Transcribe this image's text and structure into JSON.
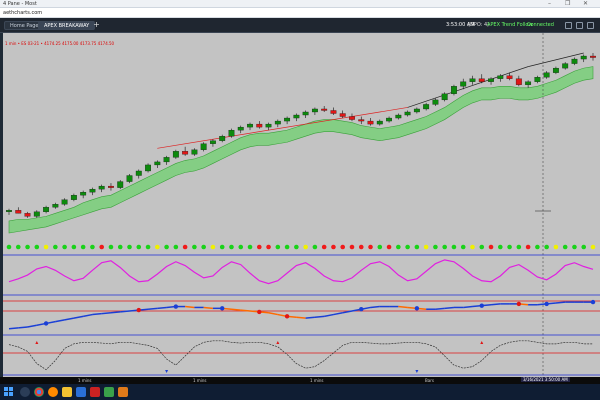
{
  "window": {
    "title": "4 Pane - Most",
    "controls": [
      "–",
      "❐",
      "✕"
    ]
  },
  "address": {
    "url": "aethcharts.com"
  },
  "tabs": [
    {
      "label": "Home Page",
      "active": false
    },
    {
      "label": "APEX BREAKAWAY",
      "active": true
    }
  ],
  "new_tab_label": "+",
  "status": {
    "time": "3:53:00 AM",
    "code": "(DPO: 4)",
    "feed": "APEX Trend Follow",
    "connection": "Connected"
  },
  "chart_strip_text": "1 min  •  ES 03-21  •  4174.25  4175.00  4173.75  4174.50",
  "time_axis": {
    "labels": [
      "1 mins",
      "1 mins",
      "1 mins",
      "Bars"
    ],
    "cursor_label": "3/16/2021 3:50:00 AM"
  },
  "icons": {
    "taskbar": [
      "windows-start-icon",
      "search-icon",
      "chrome-icon",
      "firefox-icon",
      "folder-icon",
      "mail-icon",
      "app-icon",
      "app-icon",
      "app-icon"
    ]
  },
  "colors": {
    "bull": "#0d8a0d",
    "bear": "#e01616",
    "band": "#6fd26f",
    "momentum": "#e020e0",
    "osc_up": "#1a3fd6",
    "osc_down": "#ff6a00",
    "panel_bg": "#c3c3c3"
  },
  "candles": [
    [
      4172,
      4174,
      4170,
      4173
    ],
    [
      4173,
      4175,
      4171,
      4171
    ],
    [
      4171,
      4172,
      4168,
      4169
    ],
    [
      4169,
      4173,
      4168,
      4172
    ],
    [
      4172,
      4176,
      4171,
      4175
    ],
    [
      4175,
      4178,
      4174,
      4177
    ],
    [
      4177,
      4181,
      4176,
      4180
    ],
    [
      4180,
      4184,
      4179,
      4183
    ],
    [
      4183,
      4186,
      4181,
      4185
    ],
    [
      4185,
      4188,
      4183,
      4187
    ],
    [
      4187,
      4190,
      4185,
      4189
    ],
    [
      4189,
      4191,
      4186,
      4188
    ],
    [
      4188,
      4193,
      4187,
      4192
    ],
    [
      4192,
      4197,
      4191,
      4196
    ],
    [
      4196,
      4200,
      4194,
      4199
    ],
    [
      4199,
      4204,
      4198,
      4203
    ],
    [
      4203,
      4206,
      4201,
      4205
    ],
    [
      4205,
      4209,
      4203,
      4208
    ],
    [
      4208,
      4213,
      4207,
      4212
    ],
    [
      4212,
      4215,
      4209,
      4210
    ],
    [
      4210,
      4214,
      4209,
      4213
    ],
    [
      4213,
      4218,
      4212,
      4217
    ],
    [
      4217,
      4220,
      4215,
      4219
    ],
    [
      4219,
      4223,
      4218,
      4222
    ],
    [
      4222,
      4227,
      4221,
      4226
    ],
    [
      4226,
      4229,
      4224,
      4228
    ],
    [
      4228,
      4231,
      4226,
      4230
    ],
    [
      4230,
      4232,
      4227,
      4228
    ],
    [
      4228,
      4231,
      4226,
      4230
    ],
    [
      4230,
      4233,
      4228,
      4232
    ],
    [
      4232,
      4235,
      4230,
      4234
    ],
    [
      4234,
      4237,
      4232,
      4236
    ],
    [
      4236,
      4239,
      4234,
      4238
    ],
    [
      4238,
      4241,
      4236,
      4240
    ],
    [
      4240,
      4242,
      4238,
      4239
    ],
    [
      4239,
      4241,
      4236,
      4237
    ],
    [
      4237,
      4239,
      4234,
      4235
    ],
    [
      4235,
      4237,
      4232,
      4233
    ],
    [
      4233,
      4235,
      4230,
      4232
    ],
    [
      4232,
      4234,
      4229,
      4230
    ],
    [
      4230,
      4233,
      4229,
      4232
    ],
    [
      4232,
      4235,
      4231,
      4234
    ],
    [
      4234,
      4237,
      4233,
      4236
    ],
    [
      4236,
      4239,
      4235,
      4238
    ],
    [
      4238,
      4241,
      4237,
      4240
    ],
    [
      4240,
      4244,
      4239,
      4243
    ],
    [
      4243,
      4247,
      4242,
      4246
    ],
    [
      4246,
      4251,
      4245,
      4250
    ],
    [
      4250,
      4256,
      4249,
      4255
    ],
    [
      4255,
      4260,
      4253,
      4258
    ],
    [
      4258,
      4262,
      4256,
      4260
    ],
    [
      4260,
      4263,
      4257,
      4258
    ],
    [
      4258,
      4261,
      4256,
      4260
    ],
    [
      4260,
      4263,
      4258,
      4262
    ],
    [
      4262,
      4264,
      4259,
      4260
    ],
    [
      4260,
      4262,
      4255,
      4256
    ],
    [
      4256,
      4259,
      4254,
      4258
    ],
    [
      4258,
      4262,
      4257,
      4261
    ],
    [
      4261,
      4265,
      4260,
      4264
    ],
    [
      4264,
      4268,
      4263,
      4267
    ],
    [
      4267,
      4271,
      4266,
      4270
    ],
    [
      4270,
      4274,
      4269,
      4273
    ],
    [
      4273,
      4276,
      4271,
      4275
    ],
    [
      4275,
      4277,
      4272,
      4274
    ]
  ],
  "band_upper": [
    4166,
    4167,
    4167,
    4168,
    4169,
    4171,
    4173,
    4175,
    4178,
    4180,
    4182,
    4183,
    4186,
    4189,
    4192,
    4195,
    4198,
    4201,
    4204,
    4206,
    4207,
    4209,
    4212,
    4215,
    4218,
    4221,
    4223,
    4224,
    4224,
    4225,
    4226,
    4228,
    4230,
    4232,
    4233,
    4233,
    4232,
    4231,
    4229,
    4228,
    4227,
    4228,
    4229,
    4231,
    4233,
    4235,
    4238,
    4241,
    4245,
    4249,
    4252,
    4254,
    4254,
    4255,
    4255,
    4254,
    4254,
    4255,
    4257,
    4259,
    4262,
    4265,
    4267,
    4268
  ],
  "band_lower": [
    4158,
    4159,
    4160,
    4161,
    4162,
    4164,
    4166,
    4168,
    4170,
    4172,
    4174,
    4175,
    4178,
    4181,
    4184,
    4187,
    4190,
    4193,
    4196,
    4198,
    4199,
    4201,
    4204,
    4207,
    4210,
    4213,
    4215,
    4216,
    4216,
    4217,
    4218,
    4220,
    4222,
    4224,
    4225,
    4225,
    4224,
    4223,
    4221,
    4220,
    4219,
    4220,
    4221,
    4223,
    4225,
    4227,
    4230,
    4233,
    4237,
    4241,
    4244,
    4246,
    4246,
    4247,
    4247,
    4246,
    4246,
    4247,
    4249,
    4251,
    4254,
    4257,
    4259,
    4260
  ],
  "dots": [
    "g",
    "g",
    "g",
    "g",
    "y",
    "g",
    "g",
    "g",
    "g",
    "g",
    "r",
    "g",
    "g",
    "g",
    "g",
    "g",
    "y",
    "g",
    "g",
    "r",
    "g",
    "g",
    "y",
    "g",
    "g",
    "g",
    "g",
    "r",
    "r",
    "g",
    "g",
    "g",
    "y",
    "g",
    "r",
    "r",
    "r",
    "r",
    "r",
    "r",
    "g",
    "r",
    "g",
    "g",
    "g",
    "y",
    "g",
    "g",
    "g",
    "g",
    "y",
    "g",
    "r",
    "g",
    "g",
    "g",
    "r",
    "g",
    "g",
    "y",
    "g",
    "g",
    "g",
    "y"
  ],
  "momentum": [
    28,
    34,
    42,
    55,
    60,
    52,
    40,
    30,
    35,
    52,
    68,
    72,
    58,
    40,
    28,
    30,
    44,
    60,
    70,
    62,
    48,
    36,
    40,
    58,
    70,
    64,
    46,
    30,
    24,
    30,
    46,
    62,
    68,
    56,
    40,
    30,
    28,
    36,
    52,
    66,
    70,
    60,
    42,
    30,
    34,
    50,
    66,
    74,
    70,
    56,
    40,
    30,
    28,
    40,
    58,
    64,
    52,
    38,
    32,
    44,
    62,
    68,
    60,
    54
  ],
  "osc_line": [
    42,
    43,
    44,
    46,
    48,
    50,
    52,
    54,
    56,
    58,
    59,
    60,
    61,
    62,
    63,
    64,
    65,
    66,
    67,
    67,
    66,
    66,
    65,
    65,
    64,
    63,
    62,
    61,
    60,
    58,
    56,
    55,
    54,
    55,
    56,
    58,
    60,
    62,
    64,
    66,
    67,
    67,
    67,
    66,
    65,
    64,
    64,
    65,
    66,
    66,
    67,
    68,
    69,
    70,
    70,
    70,
    69,
    69,
    70,
    71,
    72,
    72,
    72,
    72
  ],
  "cycle_line": [
    55,
    52,
    46,
    30,
    22,
    34,
    50,
    56,
    58,
    58,
    57,
    56,
    58,
    58,
    56,
    54,
    50,
    36,
    28,
    40,
    52,
    58,
    60,
    60,
    58,
    57,
    58,
    58,
    56,
    52,
    42,
    30,
    24,
    26,
    34,
    44,
    54,
    58,
    58,
    57,
    56,
    56,
    57,
    58,
    58,
    56,
    52,
    40,
    28,
    24,
    26,
    34,
    46,
    54,
    58,
    60,
    60,
    58,
    56,
    56,
    58,
    58,
    56,
    56
  ]
}
